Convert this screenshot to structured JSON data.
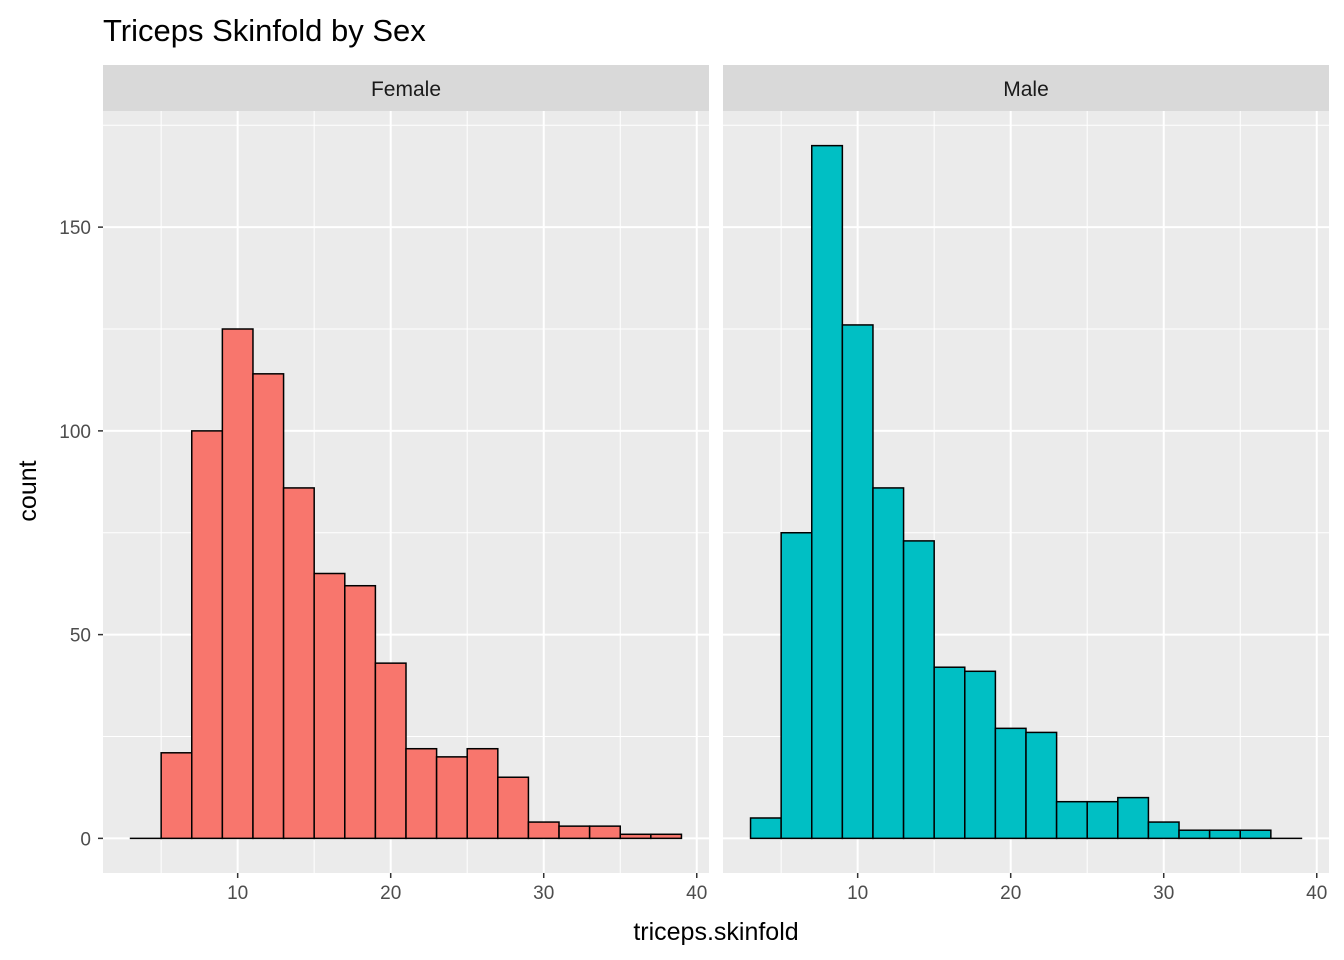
{
  "chart_data": {
    "type": "bar",
    "title": "Triceps Skinfold by Sex",
    "xlabel": "triceps.skinfold",
    "ylabel": "count",
    "xlim": [
      1.2,
      40.8
    ],
    "ylim": [
      -8.5,
      178.5
    ],
    "x_ticks": [
      10,
      20,
      30,
      40
    ],
    "y_ticks": [
      0,
      50,
      100,
      150
    ],
    "grid": true,
    "bin_edges": [
      3,
      5,
      7,
      9,
      11,
      13,
      15,
      17,
      19,
      21,
      23,
      25,
      27,
      29,
      31,
      33,
      35,
      37,
      39
    ],
    "facets": [
      {
        "label": "Female",
        "fill": "#F8766D",
        "counts": [
          0,
          21,
          100,
          125,
          114,
          86,
          65,
          62,
          43,
          22,
          20,
          22,
          15,
          4,
          3,
          3,
          1,
          1
        ]
      },
      {
        "label": "Male",
        "fill": "#00BFC4",
        "counts": [
          5,
          75,
          170,
          126,
          86,
          73,
          42,
          41,
          27,
          26,
          9,
          9,
          10,
          4,
          2,
          2,
          2,
          0
        ]
      }
    ]
  }
}
